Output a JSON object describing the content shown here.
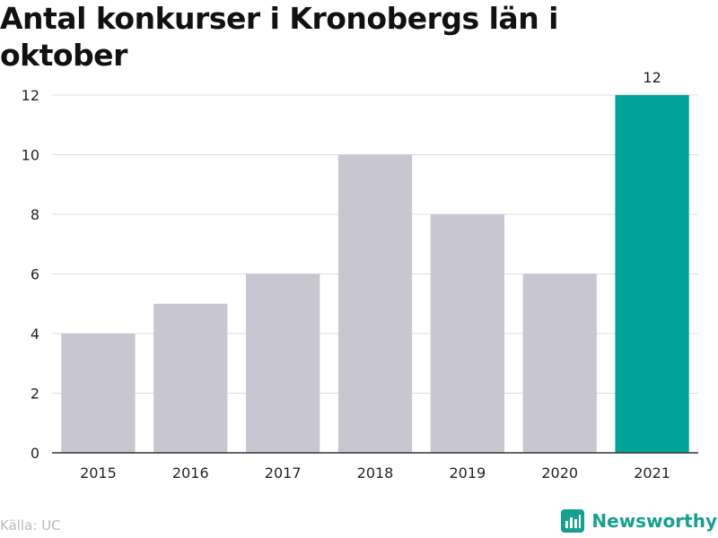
{
  "title": "Antal konkurser i Kronobergs län i oktober",
  "source": "Källa: UC",
  "brand": {
    "name": "Newsworthy",
    "icon": "newsworthy-logo-icon"
  },
  "colors": {
    "bar": "#c8c7d1",
    "highlight": "#00a398",
    "grid": "#dcdcdc",
    "baseline": "#333333"
  },
  "chart_data": {
    "type": "bar",
    "categories": [
      "2015",
      "2016",
      "2017",
      "2018",
      "2019",
      "2020",
      "2021"
    ],
    "values": [
      4,
      5,
      6,
      10,
      8,
      6,
      12
    ],
    "highlight_index": 6,
    "data_labels": [
      {
        "index": 6,
        "text": "12"
      }
    ],
    "ylim": [
      0,
      12
    ],
    "yticks": [
      "0",
      "2",
      "4",
      "6",
      "8",
      "10",
      "12"
    ],
    "grid": true,
    "xlabel": "",
    "ylabel": ""
  }
}
